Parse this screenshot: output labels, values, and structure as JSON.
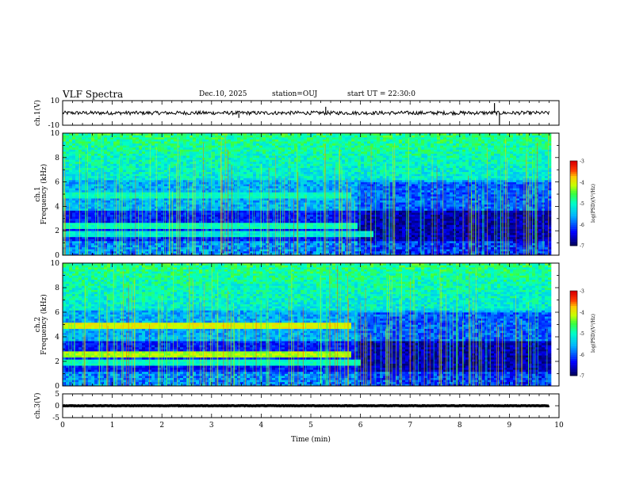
{
  "header": {
    "title": "VLF Spectra",
    "date": "Dec.10, 2025",
    "station": "station=OUJ",
    "start": "start UT =  22:30:0"
  },
  "colors": {
    "frame": "#000000",
    "trace": "#000000",
    "spectrum_bg": "#1fc7e4",
    "colormap": [
      "#000064",
      "#0000ff",
      "#00b4ff",
      "#00ffc8",
      "#3cff3c",
      "#c8ff00",
      "#ffc800",
      "#ff3c00",
      "#dc0000",
      "#ffffff"
    ]
  },
  "chart_data": [
    {
      "type": "line",
      "ylabel": "ch.1(V)",
      "ylim": [
        -10,
        10
      ],
      "yticks": [
        "10",
        "-10"
      ],
      "xlim": [
        0,
        10
      ],
      "baseline": 0,
      "noise_amplitude": 1.5,
      "spikes": [
        {
          "x": 3.55,
          "y": -4
        },
        {
          "x": 5.3,
          "y": 5
        },
        {
          "x": 8.7,
          "y": 8
        },
        {
          "x": 8.8,
          "y": -10
        }
      ]
    },
    {
      "type": "heatmap",
      "ylabel": "ch.1",
      "ylabel2": "Frequency (kHz)",
      "ylim": [
        0,
        10
      ],
      "yticks": [
        "0",
        "2",
        "4",
        "6",
        "8",
        "10"
      ],
      "xlim": [
        0,
        10
      ],
      "quantity": "log(PSD)",
      "colorbar": {
        "labels": [
          "-3",
          "-4",
          "-5",
          "-6",
          "-7"
        ],
        "label": "log(PSD)(V²/Hz)",
        "range": [
          -7,
          -3
        ]
      },
      "bands": [
        {
          "f": 4.9,
          "t_end": 5.8,
          "level": -5.0
        },
        {
          "f": 2.4,
          "t_end": 5.9,
          "level": -5.0
        },
        {
          "f": 1.6,
          "t_end": 6.2,
          "level": -5.2
        }
      ],
      "transition_min": 5.9
    },
    {
      "type": "heatmap",
      "ylabel": "ch.2",
      "ylabel2": "Frequency (kHz)",
      "ylim": [
        0,
        10
      ],
      "yticks": [
        "0",
        "2",
        "4",
        "6",
        "8",
        "10"
      ],
      "xlim": [
        0,
        10
      ],
      "quantity": "log(PSD)",
      "colorbar": {
        "labels": [
          "-3",
          "-4",
          "-5",
          "-6",
          "-7"
        ],
        "label": "log(PSD)(V²/Hz)",
        "range": [
          -7,
          -3
        ]
      },
      "bands": [
        {
          "f": 4.9,
          "t_end": 5.8,
          "level": -4.0
        },
        {
          "f": 2.5,
          "t_end": 5.8,
          "level": -4.2
        },
        {
          "f": 1.9,
          "t_end": 6.0,
          "level": -5.0
        }
      ],
      "transition_min": 5.9
    },
    {
      "type": "line",
      "ylabel": "ch.3(V)",
      "ylim": [
        -5,
        5
      ],
      "yticks": [
        "5",
        "0",
        "-5"
      ],
      "xlim": [
        0,
        10
      ],
      "xlabel": "Time (min)",
      "xticks": [
        "0",
        "1",
        "2",
        "3",
        "4",
        "5",
        "6",
        "7",
        "8",
        "9",
        "10"
      ],
      "baseline": 0,
      "noise_amplitude": 0.1
    }
  ]
}
